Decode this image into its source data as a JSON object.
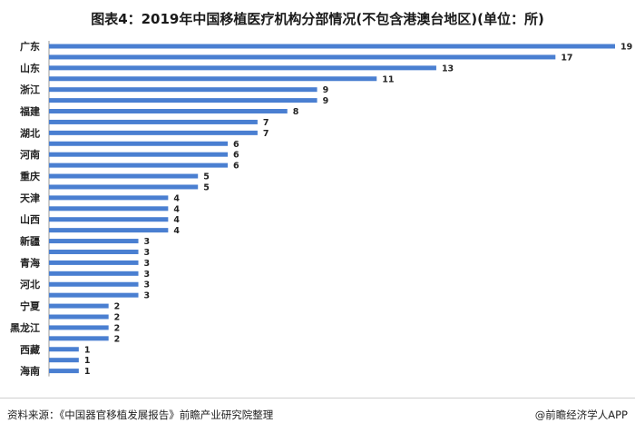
{
  "chart_data": {
    "type": "bar",
    "orientation": "horizontal",
    "title": "图表4：2019年中国移植医疗机构分部情况(不包含港澳台地区)(单位：所)",
    "categories": [
      "广东",
      "",
      "山东",
      "",
      "浙江",
      "",
      "福建",
      "",
      "湖北",
      "",
      "河南",
      "",
      "重庆",
      "",
      "天津",
      "",
      "山西",
      "",
      "新疆",
      "",
      "青海",
      "",
      "河北",
      "",
      "宁夏",
      "",
      "黑龙江",
      "",
      "西藏",
      "",
      "海南"
    ],
    "values": [
      19,
      17,
      13,
      11,
      9,
      9,
      8,
      7,
      7,
      6,
      6,
      6,
      5,
      5,
      4,
      4,
      4,
      4,
      3,
      3,
      3,
      3,
      3,
      3,
      2,
      2,
      2,
      2,
      1,
      1,
      1
    ],
    "bar_color": "#4a7fd1",
    "grid": false,
    "legend": "none"
  },
  "footer": {
    "source": "资料来源：《中国器官移植发展报告》前瞻产业研究院整理",
    "brand": "@前瞻经济学人APP"
  }
}
